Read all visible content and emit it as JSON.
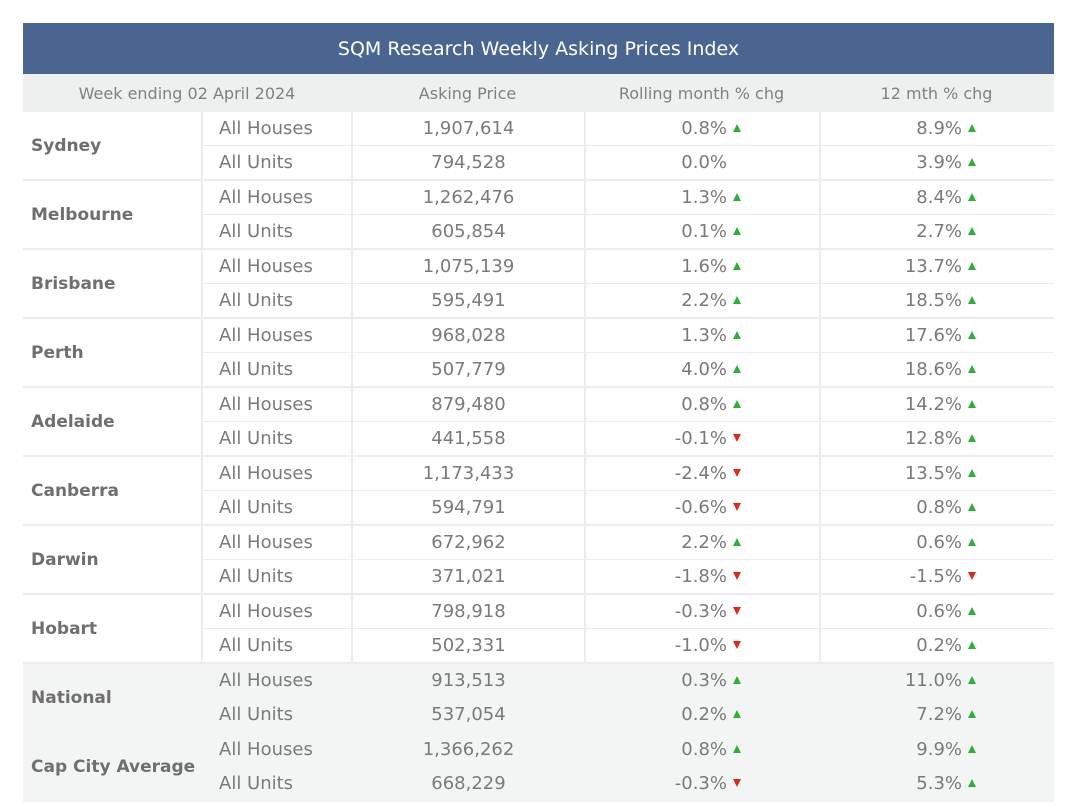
{
  "title": "SQM Research Weekly Asking Prices Index",
  "headers": {
    "week": "Week ending 02 April 2024",
    "price": "Asking Price",
    "rolling": "Rolling month % chg",
    "yearly": "12 mth % chg"
  },
  "colors": {
    "header_bg": "#4a6690",
    "up": "#2fae3b",
    "down": "#d52b21"
  },
  "rows": [
    {
      "city": "Sydney",
      "types": [
        {
          "type": "All Houses",
          "price": "1,907,614",
          "rolling": "0.8%",
          "rolling_dir": "up",
          "yearly": "8.9%",
          "yearly_dir": "up"
        },
        {
          "type": "All Units",
          "price": "794,528",
          "rolling": "0.0%",
          "rolling_dir": "none",
          "yearly": "3.9%",
          "yearly_dir": "up"
        }
      ]
    },
    {
      "city": "Melbourne",
      "types": [
        {
          "type": "All Houses",
          "price": "1,262,476",
          "rolling": "1.3%",
          "rolling_dir": "up",
          "yearly": "8.4%",
          "yearly_dir": "up"
        },
        {
          "type": "All Units",
          "price": "605,854",
          "rolling": "0.1%",
          "rolling_dir": "up",
          "yearly": "2.7%",
          "yearly_dir": "up"
        }
      ]
    },
    {
      "city": "Brisbane",
      "types": [
        {
          "type": "All Houses",
          "price": "1,075,139",
          "rolling": "1.6%",
          "rolling_dir": "up",
          "yearly": "13.7%",
          "yearly_dir": "up"
        },
        {
          "type": "All Units",
          "price": "595,491",
          "rolling": "2.2%",
          "rolling_dir": "up",
          "yearly": "18.5%",
          "yearly_dir": "up"
        }
      ]
    },
    {
      "city": "Perth",
      "types": [
        {
          "type": "All Houses",
          "price": "968,028",
          "rolling": "1.3%",
          "rolling_dir": "up",
          "yearly": "17.6%",
          "yearly_dir": "up"
        },
        {
          "type": "All Units",
          "price": "507,779",
          "rolling": "4.0%",
          "rolling_dir": "up",
          "yearly": "18.6%",
          "yearly_dir": "up"
        }
      ]
    },
    {
      "city": "Adelaide",
      "types": [
        {
          "type": "All Houses",
          "price": "879,480",
          "rolling": "0.8%",
          "rolling_dir": "up",
          "yearly": "14.2%",
          "yearly_dir": "up"
        },
        {
          "type": "All Units",
          "price": "441,558",
          "rolling": "-0.1%",
          "rolling_dir": "down",
          "yearly": "12.8%",
          "yearly_dir": "up"
        }
      ]
    },
    {
      "city": "Canberra",
      "types": [
        {
          "type": "All Houses",
          "price": "1,173,433",
          "rolling": "-2.4%",
          "rolling_dir": "down",
          "yearly": "13.5%",
          "yearly_dir": "up"
        },
        {
          "type": "All Units",
          "price": "594,791",
          "rolling": "-0.6%",
          "rolling_dir": "down",
          "yearly": "0.8%",
          "yearly_dir": "up"
        }
      ]
    },
    {
      "city": "Darwin",
      "types": [
        {
          "type": "All Houses",
          "price": "672,962",
          "rolling": "2.2%",
          "rolling_dir": "up",
          "yearly": "0.6%",
          "yearly_dir": "up"
        },
        {
          "type": "All Units",
          "price": "371,021",
          "rolling": "-1.8%",
          "rolling_dir": "down",
          "yearly": "-1.5%",
          "yearly_dir": "down"
        }
      ]
    },
    {
      "city": "Hobart",
      "types": [
        {
          "type": "All Houses",
          "price": "798,918",
          "rolling": "-0.3%",
          "rolling_dir": "down",
          "yearly": "0.6%",
          "yearly_dir": "up"
        },
        {
          "type": "All Units",
          "price": "502,331",
          "rolling": "-1.0%",
          "rolling_dir": "down",
          "yearly": "0.2%",
          "yearly_dir": "up"
        }
      ]
    },
    {
      "city": "National",
      "shade": true,
      "types": [
        {
          "type": "All Houses",
          "price": "913,513",
          "rolling": "0.3%",
          "rolling_dir": "up",
          "yearly": "11.0%",
          "yearly_dir": "up"
        },
        {
          "type": "All Units",
          "price": "537,054",
          "rolling": "0.2%",
          "rolling_dir": "up",
          "yearly": "7.2%",
          "yearly_dir": "up"
        }
      ]
    },
    {
      "city": "Cap City Average",
      "shade": true,
      "types": [
        {
          "type": "All Houses",
          "price": "1,366,262",
          "rolling": "0.8%",
          "rolling_dir": "up",
          "yearly": "9.9%",
          "yearly_dir": "up"
        },
        {
          "type": "All Units",
          "price": "668,229",
          "rolling": "-0.3%",
          "rolling_dir": "down",
          "yearly": "5.3%",
          "yearly_dir": "up"
        }
      ]
    }
  ]
}
